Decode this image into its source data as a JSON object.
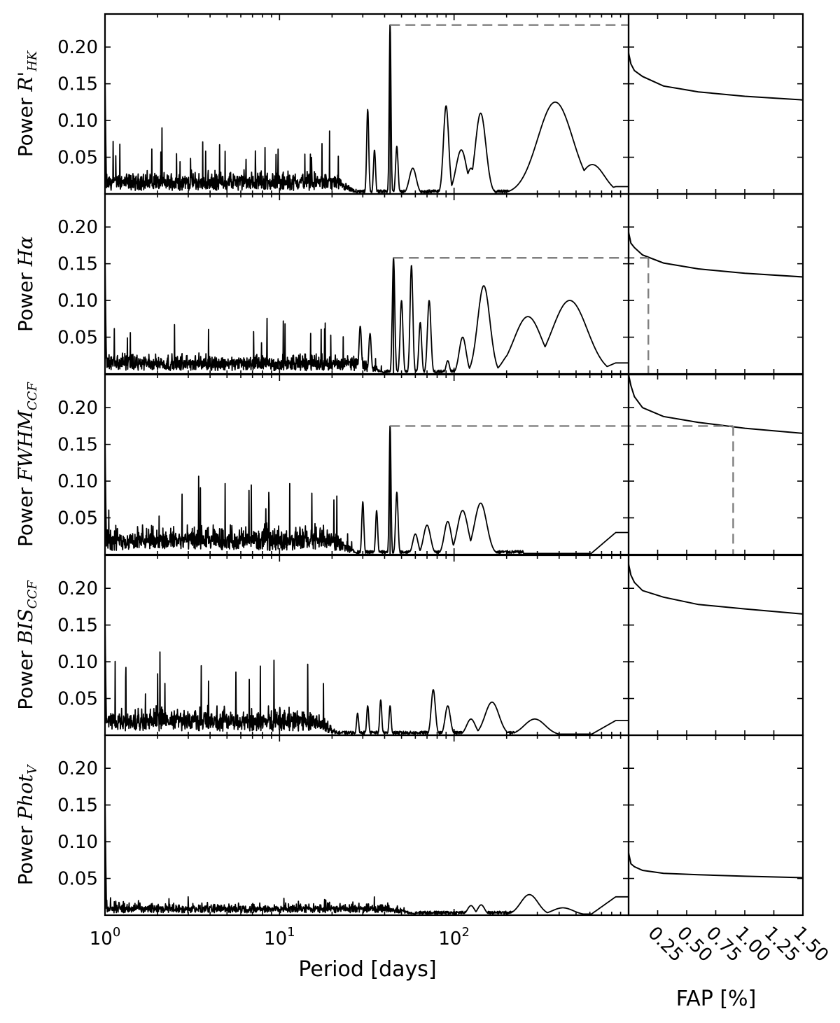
{
  "chart_data": {
    "type": "line",
    "x_scale": "log",
    "xlabel": "Period [days]",
    "xlim": [
      1,
      1000
    ],
    "x_ticks": [
      {
        "value": 1,
        "base": "10",
        "exp": "0"
      },
      {
        "value": 10,
        "base": "10",
        "exp": "1"
      },
      {
        "value": 100,
        "base": "10",
        "exp": "2"
      }
    ],
    "ylim": [
      0,
      0.245
    ],
    "y_ticks": [
      0.05,
      0.1,
      0.15,
      0.2
    ],
    "y_tick_labels": [
      "0.05",
      "0.10",
      "0.15",
      "0.20"
    ],
    "fap_axis": {
      "label": "FAP [%]",
      "xlim": [
        0,
        1.5
      ],
      "ticks": [
        0.25,
        0.5,
        0.75,
        1.0,
        1.25,
        1.5
      ],
      "tick_labels": [
        "0.25",
        "0.50",
        "0.75",
        "1.00",
        "1.25",
        "1.50"
      ]
    },
    "panels": [
      {
        "ylabel_prefix": "Power",
        "ylabel_symbol": "R'",
        "ylabel_subscript": "HK",
        "noise": {
          "base": 0.016,
          "amp": 0.014,
          "spike_max": 0.06,
          "until": 28
        },
        "peaks": [
          {
            "period": 32,
            "power": 0.115,
            "width": 0.006
          },
          {
            "period": 35,
            "power": 0.06,
            "width": 0.006
          },
          {
            "period": 43,
            "power": 0.23,
            "width": 0.005
          },
          {
            "period": 47,
            "power": 0.065,
            "width": 0.007
          },
          {
            "period": 58,
            "power": 0.035,
            "width": 0.02
          },
          {
            "period": 90,
            "power": 0.12,
            "width": 0.015
          },
          {
            "period": 110,
            "power": 0.06,
            "width": 0.03
          },
          {
            "period": 125,
            "power": 0.035,
            "width": 0.025
          },
          {
            "period": 142,
            "power": 0.11,
            "width": 0.03
          },
          {
            "period": 380,
            "power": 0.125,
            "width": 0.1
          },
          {
            "period": 620,
            "power": 0.04,
            "width": 0.07
          }
        ],
        "tail_power": 0.01,
        "fap_curve": [
          [
            0.02,
            0.177
          ],
          [
            0.05,
            0.168
          ],
          [
            0.12,
            0.16
          ],
          [
            0.3,
            0.147
          ],
          [
            0.6,
            0.139
          ],
          [
            1.0,
            0.133
          ],
          [
            1.5,
            0.128
          ]
        ],
        "threshold": {
          "period_start": 43,
          "power": 0.23,
          "fap": null
        }
      },
      {
        "ylabel_prefix": "Power",
        "ylabel_symbol": "Hα",
        "ylabel_subscript": "",
        "noise": {
          "base": 0.014,
          "amp": 0.012,
          "spike_max": 0.06,
          "until": 40
        },
        "peaks": [
          {
            "period": 29,
            "power": 0.065,
            "width": 0.007
          },
          {
            "period": 33,
            "power": 0.055,
            "width": 0.007
          },
          {
            "period": 45,
            "power": 0.158,
            "width": 0.007
          },
          {
            "period": 50,
            "power": 0.1,
            "width": 0.008
          },
          {
            "period": 57,
            "power": 0.148,
            "width": 0.008
          },
          {
            "period": 64,
            "power": 0.07,
            "width": 0.008
          },
          {
            "period": 72,
            "power": 0.1,
            "width": 0.01
          },
          {
            "period": 92,
            "power": 0.018,
            "width": 0.01
          },
          {
            "period": 112,
            "power": 0.05,
            "width": 0.02
          },
          {
            "period": 148,
            "power": 0.12,
            "width": 0.035
          },
          {
            "period": 215,
            "power": 0.03,
            "width": 0.05
          },
          {
            "period": 265,
            "power": 0.078,
            "width": 0.08
          },
          {
            "period": 460,
            "power": 0.1,
            "width": 0.1
          }
        ],
        "tail_power": 0.015,
        "fap_curve": [
          [
            0.02,
            0.178
          ],
          [
            0.05,
            0.172
          ],
          [
            0.12,
            0.162
          ],
          [
            0.3,
            0.151
          ],
          [
            0.6,
            0.143
          ],
          [
            1.0,
            0.137
          ],
          [
            1.5,
            0.132
          ]
        ],
        "threshold": {
          "period_start": 45,
          "power": 0.158,
          "fap": 0.17
        }
      },
      {
        "ylabel_prefix": "Power",
        "ylabel_symbol": "FWHM",
        "ylabel_subscript": "CCF",
        "noise": {
          "base": 0.02,
          "amp": 0.018,
          "spike_max": 0.08,
          "until": 28
        },
        "peaks": [
          {
            "period": 30,
            "power": 0.072,
            "width": 0.006
          },
          {
            "period": 36,
            "power": 0.06,
            "width": 0.006
          },
          {
            "period": 43,
            "power": 0.175,
            "width": 0.005
          },
          {
            "period": 47,
            "power": 0.085,
            "width": 0.007
          },
          {
            "period": 60,
            "power": 0.028,
            "width": 0.015
          },
          {
            "period": 70,
            "power": 0.04,
            "width": 0.02
          },
          {
            "period": 92,
            "power": 0.045,
            "width": 0.02
          },
          {
            "period": 112,
            "power": 0.06,
            "width": 0.03
          },
          {
            "period": 142,
            "power": 0.07,
            "width": 0.035
          }
        ],
        "tail_power": 0.03,
        "fap_curve": [
          [
            0.02,
            0.23
          ],
          [
            0.05,
            0.215
          ],
          [
            0.12,
            0.2
          ],
          [
            0.3,
            0.188
          ],
          [
            0.6,
            0.18
          ],
          [
            1.0,
            0.172
          ],
          [
            1.5,
            0.165
          ]
        ],
        "threshold": {
          "period_start": 43,
          "power": 0.175,
          "fap": 0.9
        }
      },
      {
        "ylabel_prefix": "Power",
        "ylabel_symbol": "BIS",
        "ylabel_subscript": "CCF",
        "noise": {
          "base": 0.02,
          "amp": 0.018,
          "spike_max": 0.09,
          "until": 22
        },
        "peaks": [
          {
            "period": 28,
            "power": 0.03,
            "width": 0.006
          },
          {
            "period": 32,
            "power": 0.04,
            "width": 0.006
          },
          {
            "period": 38,
            "power": 0.048,
            "width": 0.006
          },
          {
            "period": 43,
            "power": 0.04,
            "width": 0.006
          },
          {
            "period": 76,
            "power": 0.062,
            "width": 0.012
          },
          {
            "period": 92,
            "power": 0.04,
            "width": 0.015
          },
          {
            "period": 125,
            "power": 0.022,
            "width": 0.025
          },
          {
            "period": 165,
            "power": 0.045,
            "width": 0.04
          },
          {
            "period": 290,
            "power": 0.022,
            "width": 0.06
          }
        ],
        "tail_power": 0.02,
        "fap_curve": [
          [
            0.02,
            0.218
          ],
          [
            0.05,
            0.208
          ],
          [
            0.12,
            0.197
          ],
          [
            0.3,
            0.188
          ],
          [
            0.6,
            0.178
          ],
          [
            1.0,
            0.172
          ],
          [
            1.5,
            0.165
          ]
        ],
        "threshold": null
      },
      {
        "ylabel_prefix": "Power",
        "ylabel_symbol": "Phot",
        "ylabel_subscript": "V",
        "noise": {
          "base": 0.008,
          "amp": 0.007,
          "spike_max": 0.015,
          "until": 60
        },
        "peaks": [
          {
            "period": 125,
            "power": 0.013,
            "width": 0.02
          },
          {
            "period": 143,
            "power": 0.014,
            "width": 0.02
          },
          {
            "period": 270,
            "power": 0.028,
            "width": 0.05
          },
          {
            "period": 420,
            "power": 0.01,
            "width": 0.06
          }
        ],
        "tail_power": 0.025,
        "fap_curve": [
          [
            0.02,
            0.07
          ],
          [
            0.05,
            0.066
          ],
          [
            0.12,
            0.061
          ],
          [
            0.3,
            0.057
          ],
          [
            0.6,
            0.055
          ],
          [
            1.0,
            0.053
          ],
          [
            1.5,
            0.051
          ]
        ],
        "threshold": null
      }
    ]
  }
}
